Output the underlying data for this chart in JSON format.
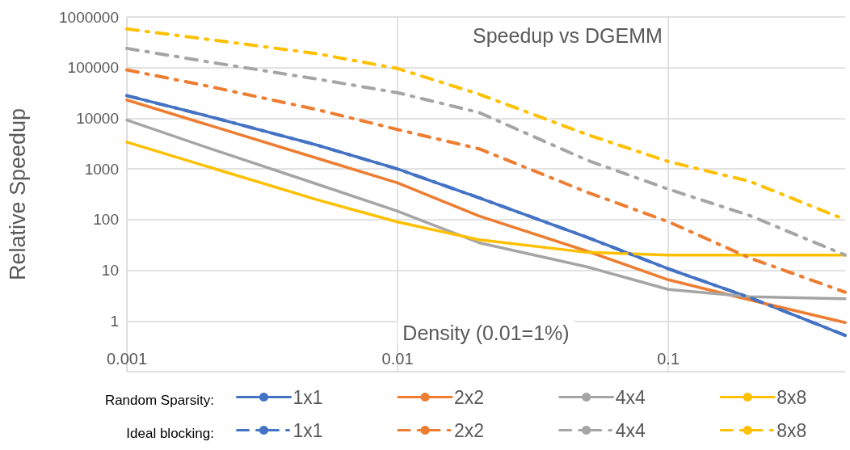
{
  "chart_data": {
    "type": "line",
    "title": "Speedup vs DGEMM",
    "xlabel": "Density (0.01=1%)",
    "ylabel": "Relative Speedup",
    "annotations": [
      "Random Sparsity:",
      "Ideal blocking:"
    ],
    "x": [
      0.001,
      0.002,
      0.005,
      0.01,
      0.02,
      0.05,
      0.1,
      0.2,
      0.45
    ],
    "series": [
      {
        "name": "1x1",
        "color": "#4472c4",
        "line_style": "solid",
        "values": [
          28000,
          11000,
          3000,
          1000,
          270,
          45,
          10.7,
          2.9,
          0.52
        ]
      },
      {
        "name": "2x2",
        "color": "#ed7d31",
        "line_style": "solid",
        "values": [
          23000,
          7400,
          1650,
          530,
          118,
          24,
          6.5,
          2.6,
          0.93
        ]
      },
      {
        "name": "4x4",
        "color": "#a5a5a5",
        "line_style": "solid",
        "values": [
          9200,
          2600,
          510,
          147,
          35,
          11.7,
          4.2,
          3.0,
          2.75
        ]
      },
      {
        "name": "8x8",
        "color": "#ffc000",
        "line_style": "solid",
        "values": [
          3400,
          1100,
          250,
          90,
          40,
          22.6,
          20,
          20,
          20
        ]
      },
      {
        "name": "1x1",
        "color": "#4472c4",
        "line_style": "dashed",
        "values": [
          28000,
          11000,
          3000,
          1000,
          270,
          45,
          10.7,
          2.9,
          0.52
        ]
      },
      {
        "name": "2x2",
        "color": "#ed7d31",
        "line_style": "dashed",
        "values": [
          90000,
          43000,
          15000,
          6000,
          2500,
          350,
          91,
          17.5,
          3.7
        ]
      },
      {
        "name": "4x4",
        "color": "#a5a5a5",
        "line_style": "dashed",
        "values": [
          240000,
          130000,
          60000,
          32000,
          13000,
          1500,
          400,
          120,
          20
        ]
      },
      {
        "name": "8x8",
        "color": "#ffc000",
        "line_style": "dashed",
        "values": [
          580000,
          360000,
          190000,
          96000,
          30000,
          4800,
          1400,
          570,
          100
        ]
      }
    ],
    "log": "xy",
    "xlim": [
      0.001,
      0.45
    ],
    "xticks": [
      0.001,
      0.01,
      0.1
    ],
    "ylim": [
      0.1,
      1000000
    ],
    "yticks": [
      {
        "value": 0.1,
        "label": null
      },
      1,
      10,
      100,
      1000,
      10000,
      100000,
      1000000
    ],
    "grid": true,
    "legend": "bottom",
    "marker": "none"
  }
}
